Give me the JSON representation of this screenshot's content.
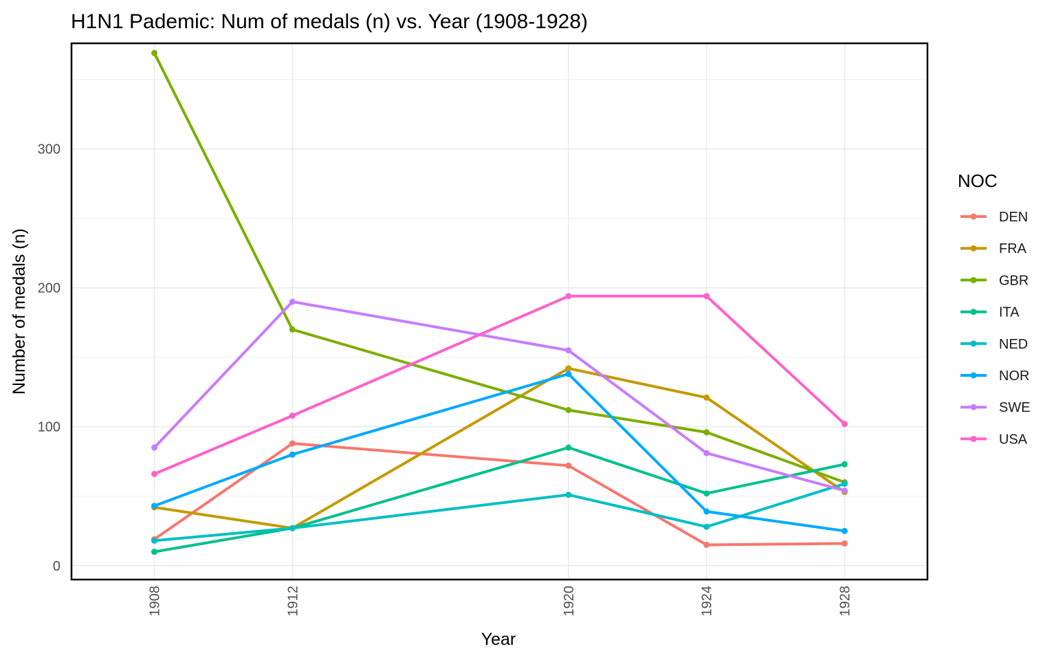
{
  "chart_data": {
    "type": "line",
    "title": "H1N1 Pademic: Num of medals (n) vs. Year (1908-1928)",
    "xlabel": "Year",
    "ylabel": "Number of medals (n)",
    "x": [
      1908,
      1912,
      1920,
      1924,
      1928
    ],
    "x_ticks": [
      "1908",
      "1912",
      "1920",
      "1924",
      "1928"
    ],
    "y_ticks": [
      0,
      100,
      200,
      300
    ],
    "ylim": [
      -10,
      376
    ],
    "grid": true,
    "legend_title": "NOC",
    "legend_position": "right",
    "series": [
      {
        "name": "DEN",
        "color": "#F8766D",
        "values": [
          19,
          88,
          72,
          15,
          16
        ]
      },
      {
        "name": "FRA",
        "color": "#C49A00",
        "values": [
          42,
          27,
          142,
          121,
          53
        ]
      },
      {
        "name": "GBR",
        "color": "#7CAE00",
        "values": [
          369,
          170,
          112,
          96,
          60
        ]
      },
      {
        "name": "ITA",
        "color": "#00C08B",
        "values": [
          10,
          27,
          85,
          52,
          73
        ]
      },
      {
        "name": "NED",
        "color": "#00BFC4",
        "values": [
          18,
          27,
          51,
          28,
          59
        ]
      },
      {
        "name": "NOR",
        "color": "#00A9FF",
        "values": [
          43,
          80,
          138,
          39,
          25
        ]
      },
      {
        "name": "SWE",
        "color": "#C77CFF",
        "values": [
          85,
          190,
          155,
          81,
          54
        ]
      },
      {
        "name": "USA",
        "color": "#FF61CC",
        "values": [
          66,
          108,
          194,
          194,
          102
        ]
      }
    ]
  }
}
